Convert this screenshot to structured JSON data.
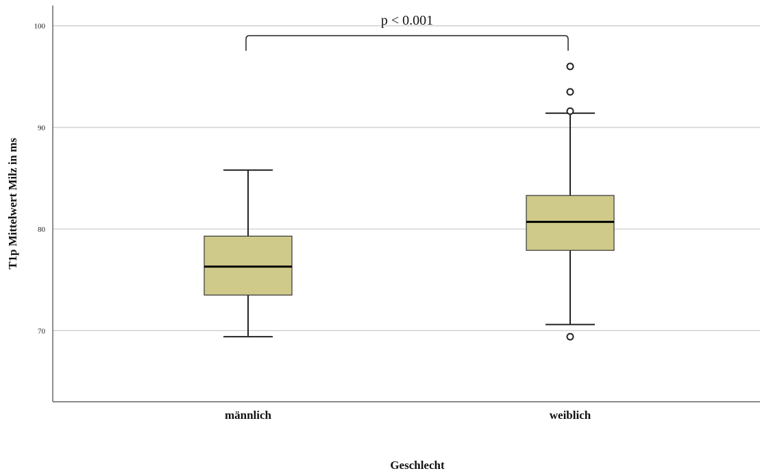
{
  "chart_data": {
    "type": "boxplot",
    "title": "",
    "xlabel": "Geschlecht",
    "ylabel": "T1p Mittelwert Milz in ms",
    "ylim": [
      63,
      102
    ],
    "yticks": [
      70,
      80,
      90,
      100
    ],
    "ytick_labels": [
      "70",
      "80",
      "90",
      "100"
    ],
    "grid": true,
    "categories": [
      "männlich",
      "weiblich"
    ],
    "boxes": [
      {
        "category": "männlich",
        "whisker_low": 69.4,
        "q1": 73.5,
        "median": 76.3,
        "q3": 79.3,
        "whisker_high": 85.8,
        "outliers": []
      },
      {
        "category": "weiblich",
        "whisker_low": 70.6,
        "q1": 77.9,
        "median": 80.7,
        "q3": 83.3,
        "whisker_high": 91.4,
        "outliers": [
          96.0,
          93.5,
          91.6,
          69.4
        ]
      }
    ],
    "annotations": [
      {
        "type": "bracket",
        "from": "männlich",
        "to": "weiblich",
        "label": "p < 0.001"
      }
    ],
    "colors": {
      "box_fill": "#d0ca8a",
      "box_stroke": "#333333",
      "median": "#000000",
      "grid": "#c8c8c8"
    }
  }
}
